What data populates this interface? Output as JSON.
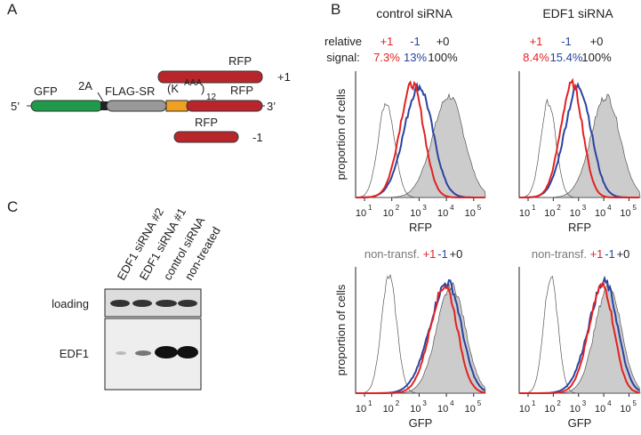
{
  "panel_a": {
    "label": "A",
    "five_prime": "5’",
    "three_prime": "3’",
    "gfp": "GFP",
    "two_a": "2A",
    "flag_sr": "FLAG-SR",
    "repeat_open": "(K",
    "repeat_sup": "AAA",
    "repeat_close": ")",
    "repeat_sub": "12",
    "rfp": "RFP",
    "plus_one": "+1",
    "minus_one": "-1"
  },
  "panel_b": {
    "label": "B",
    "columns": [
      {
        "title": "control siRNA",
        "signals": [
          "7.3%",
          "13%",
          "100%"
        ]
      },
      {
        "title": "EDF1 siRNA",
        "signals": [
          "8.4%",
          "15.4%",
          "100%"
        ]
      }
    ],
    "relative": "relative",
    "signal": "signal:",
    "frames": [
      "+1",
      "-1",
      "+0"
    ],
    "y_label": "proportion of cells",
    "x_labels": [
      "RFP",
      "GFP"
    ],
    "tick_base": "10",
    "tick_exponents": [
      "1",
      "2",
      "3",
      "4",
      "5"
    ],
    "non_transf": "non-transf."
  },
  "panel_c": {
    "label": "C",
    "lanes": [
      "EDF1 siRNA #2",
      "EDF1 siRNA #1",
      "control siRNA",
      "non-treated"
    ],
    "rows": [
      "loading",
      "EDF1"
    ]
  }
}
